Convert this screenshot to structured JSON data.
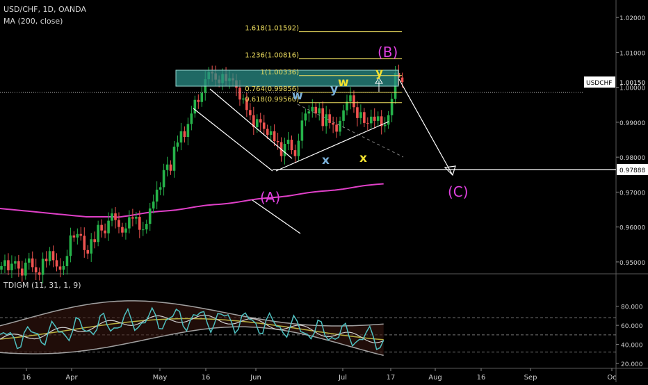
{
  "header": {
    "symbol": "USD/CHF, 1D, OANDA",
    "ma_label": "MA (200, close)",
    "indicator_label": "TDIGM (11, 31, 1, 9)"
  },
  "colors": {
    "background": "#000000",
    "candle_up": "#26b34a",
    "candle_down": "#ef5350",
    "ma": "#e040c8",
    "fib": "#f0e060",
    "box": "#3aa8a0",
    "wave_label": "#e040e0",
    "wxy_blue": "#7ab0d8",
    "wxy_yellow": "#f0e030",
    "tdi_green": "#4ec0c0",
    "tdi_yellow": "#b8b040",
    "tdi_band": "#a0a0a0"
  },
  "price_axis": {
    "min": 0.95,
    "max": 1.025,
    "ticks": [
      "1.02000",
      "1.01000",
      "1.00000",
      "0.99000",
      "0.98000",
      "0.97000",
      "0.96000",
      "0.95000"
    ],
    "tick_values": [
      1.02,
      1.01,
      1.0,
      0.99,
      0.98,
      0.97,
      0.96,
      0.95
    ],
    "current_label": "USDCHF",
    "current_value": "1.00150",
    "current_price": 1.0015,
    "target_value": "0.97888",
    "target_price": 0.97888
  },
  "time_axis": {
    "labels": [
      "16",
      "Apr",
      "May",
      "16",
      "Jun",
      "Jul",
      "17",
      "Aug",
      "16",
      "Sep",
      "Oc"
    ],
    "label_days": [
      15,
      31,
      61,
      76,
      92,
      122,
      138,
      153,
      168,
      184,
      214
    ]
  },
  "fib_levels": [
    {
      "label": "1.618(1.01592)",
      "price": 1.01592,
      "x_from": 90,
      "x_to": 158
    },
    {
      "label": "1.236(1.00816)",
      "price": 1.00816,
      "x_from": 90,
      "x_to": 158
    },
    {
      "label": "1(1.00336)",
      "price": 1.00336,
      "x_from": 90,
      "x_to": 158
    },
    {
      "label": "0.764(0.99856)",
      "price": 0.99856,
      "x_from": 90,
      "x_to": 158
    },
    {
      "label": "0.618(0.99560)",
      "price": 0.9956,
      "x_from": 90,
      "x_to": 158
    }
  ],
  "wave_labels": {
    "A": "(A)",
    "B": "(B)",
    "C": "(C)",
    "w1": "w",
    "x1": "x",
    "y1": "y",
    "w2": "w",
    "x2": "x",
    "y2": "y"
  },
  "tdi_axis": {
    "min": 15,
    "max": 95,
    "ticks": [
      "80.000",
      "60.000",
      "40.000",
      "20.000"
    ],
    "tick_values": [
      80,
      60,
      40,
      20
    ],
    "levels": [
      68,
      50,
      32
    ]
  },
  "chart_data": {
    "type": "candlestick",
    "title": "USD/CHF, 1D, OANDA",
    "price_range": [
      0.95,
      1.025
    ],
    "ohlc_close": [
      0.9488,
      0.9505,
      0.9476,
      0.9495,
      0.9502,
      0.9481,
      0.9461,
      0.9498,
      0.951,
      0.9485,
      0.947,
      0.9463,
      0.9509,
      0.9502,
      0.9531,
      0.9505,
      0.9487,
      0.9478,
      0.9488,
      0.9517,
      0.9576,
      0.957,
      0.958,
      0.9575,
      0.9534,
      0.9524,
      0.9565,
      0.9557,
      0.9606,
      0.959,
      0.9582,
      0.9618,
      0.9639,
      0.962,
      0.96,
      0.9584,
      0.9596,
      0.9628,
      0.9624,
      0.9629,
      0.9592,
      0.9593,
      0.9609,
      0.9653,
      0.9673,
      0.9707,
      0.9714,
      0.9763,
      0.9779,
      0.9761,
      0.983,
      0.9842,
      0.9874,
      0.9858,
      0.9895,
      0.9925,
      0.9964,
      0.9958,
      0.9984,
      1.0023,
      1.0044,
      1.004,
      1.0022,
      1.0012,
      1.0038,
      1.0018,
      1.0026,
      1.002,
      0.9999,
      0.9965,
      0.9968,
      0.9935,
      0.992,
      0.9886,
      0.9909,
      0.9899,
      0.9881,
      0.9864,
      0.9874,
      0.9846,
      0.9843,
      0.9803,
      0.9838,
      0.985,
      0.982,
      0.9803,
      0.9847,
      0.9905,
      0.9925,
      0.9931,
      0.9944,
      0.9925,
      0.994,
      0.9889,
      0.9923,
      0.9898,
      0.9893,
      0.9873,
      0.9904,
      0.9934,
      0.9959,
      0.9977,
      0.9943,
      0.9912,
      0.9929,
      0.9898,
      0.9897,
      0.9916,
      0.9904,
      0.9917,
      0.9889,
      0.9893,
      0.992,
      0.9967,
      1.0041,
      1.0028,
      1.0015
    ],
    "ma200": {
      "name": "MA (200, close)",
      "start": 0.9741,
      "end": 0.9753
    },
    "tdi": {
      "name": "TDIGM (11, 31, 1, 9)",
      "levels": [
        68,
        50,
        32
      ],
      "ylim": [
        20,
        90
      ]
    }
  }
}
